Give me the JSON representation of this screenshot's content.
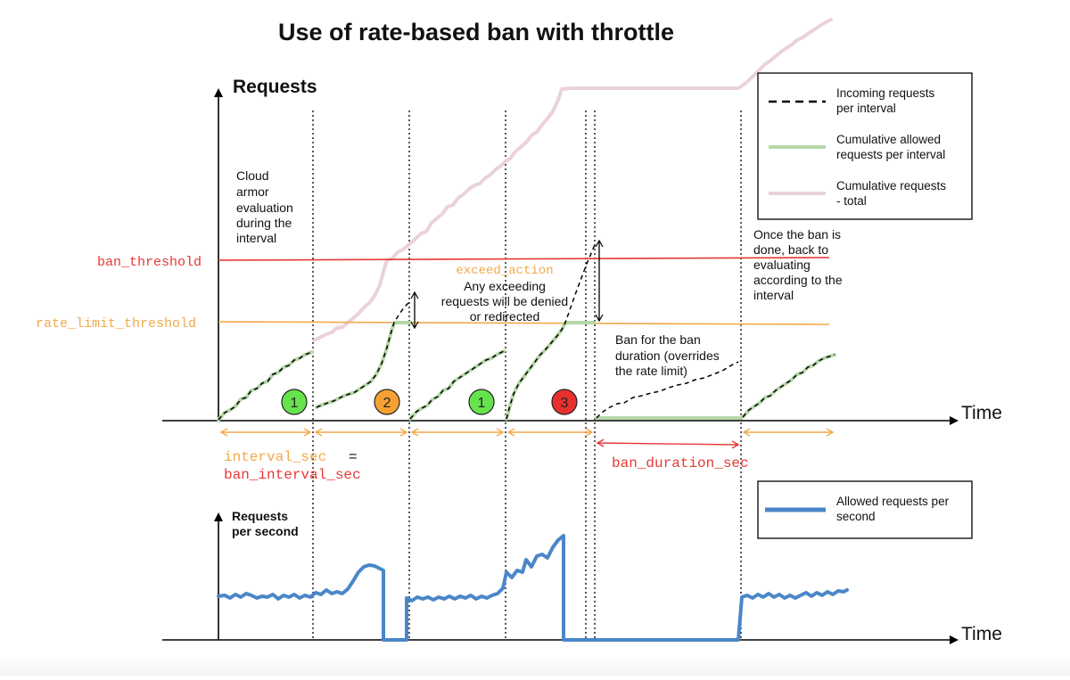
{
  "title": "Use of rate-based ban with throttle",
  "top_chart": {
    "y_axis_label": "Requests",
    "x_axis_label": "Time",
    "evaluation_note": [
      "Cloud",
      "armor",
      "evaluation",
      "during the",
      "interval"
    ],
    "ban_threshold_label": "ban_threshold",
    "rate_limit_threshold_label": "rate_limit_threshold",
    "exceed_action": {
      "label": "exceed_action",
      "lines": [
        "Any exceeding",
        "requests will be denied",
        "or redirected"
      ]
    },
    "ban_note": [
      "Ban for the ban",
      "duration (overrides",
      "the rate limit)"
    ],
    "resume_note": [
      "Once the ban is",
      "done, back to",
      "evaluating",
      "according to the",
      "interval"
    ],
    "interval_markers": [
      "1",
      "2",
      "1",
      "3"
    ],
    "interval_label": "interval_sec",
    "equals_sign": "=",
    "ban_interval_label": "ban_interval_sec",
    "ban_duration_label": "ban_duration_sec"
  },
  "legend_top": [
    {
      "lines": [
        "Incoming requests",
        "per interval"
      ],
      "color": "#000000",
      "style": "dashed"
    },
    {
      "lines": [
        "Cumulative allowed",
        "requests per interval"
      ],
      "color": "#b6d7a8",
      "style": "solid"
    },
    {
      "lines": [
        "Cumulative requests",
        "- total"
      ],
      "color": "#ead1dc",
      "style": "solid"
    }
  ],
  "bottom_chart": {
    "y_axis_label": [
      "Requests",
      "per second"
    ],
    "x_axis_label": "Time"
  },
  "legend_bottom": [
    {
      "lines": [
        "Allowed requests per",
        "second"
      ],
      "color": "#4a86c8",
      "style": "solid"
    }
  ],
  "colors": {
    "ban_red": "#e53935",
    "rate_orange": "#f2a94a",
    "allowed_green": "#b6d7a8",
    "total_pink": "#ead1dc",
    "marker_green": "#66e34c",
    "marker_orange": "#f5a133",
    "marker_red": "#e8312e",
    "per_second_blue": "#4a86c8"
  }
}
